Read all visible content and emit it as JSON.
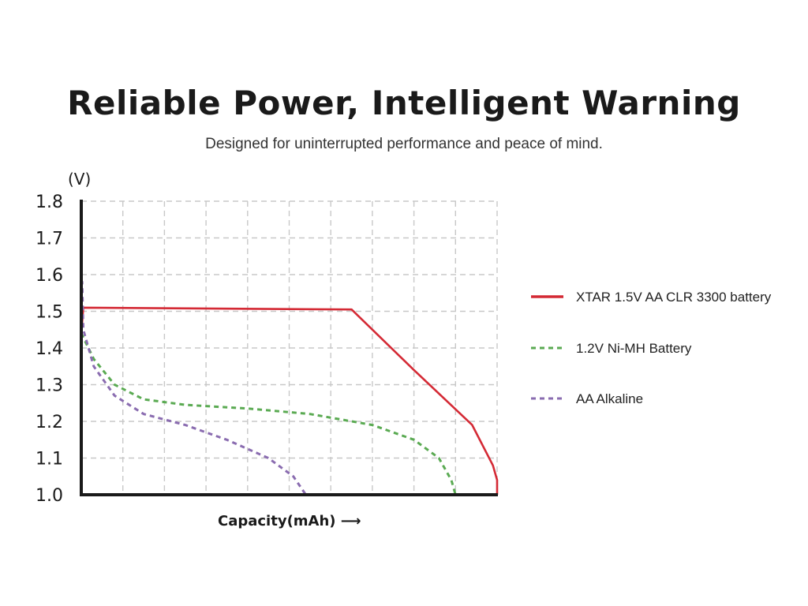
{
  "header": {
    "title": "Reliable Power, Intelligent Warning",
    "subtitle": "Designed for uninterrupted performance and peace of mind."
  },
  "chart_data": {
    "type": "line",
    "title": "Reliable Power, Intelligent Warning",
    "subtitle": "Designed for uninterrupted performance and peace of mind.",
    "xlabel": "Capacity(mAh) ⟶",
    "ylabel": "(V)",
    "ylim": [
      1.0,
      1.8
    ],
    "yticks": [
      "1.0",
      "1.1",
      "1.2",
      "1.3",
      "1.4",
      "1.5",
      "1.6",
      "1.7",
      "1.8"
    ],
    "xlim": [
      0,
      10
    ],
    "grid": true,
    "legend_position": "right",
    "series": [
      {
        "name": "XTAR 1.5V AA CLR 3300 battery",
        "color": "#d42a35",
        "style": "solid",
        "x": [
          0,
          0.05,
          6.5,
          8.0,
          9.4,
          9.9,
          10.0,
          10.0
        ],
        "y": [
          1.44,
          1.51,
          1.505,
          1.34,
          1.19,
          1.08,
          1.04,
          1.0
        ]
      },
      {
        "name": "1.2V Ni-MH Battery",
        "color": "#5aaa52",
        "style": "dashed",
        "x": [
          0,
          0.3,
          0.8,
          1.5,
          2.5,
          4.0,
          5.5,
          7.0,
          8.0,
          8.6,
          8.9,
          9.0
        ],
        "y": [
          1.44,
          1.37,
          1.3,
          1.26,
          1.245,
          1.235,
          1.22,
          1.19,
          1.15,
          1.1,
          1.04,
          1.0
        ]
      },
      {
        "name": "AA Alkaline",
        "color": "#8a6cb0",
        "style": "dashed",
        "x": [
          0,
          0.02,
          0.05,
          0.3,
          0.8,
          1.5,
          2.5,
          3.5,
          4.5,
          5.1,
          5.4
        ],
        "y": [
          1.55,
          1.58,
          1.45,
          1.35,
          1.27,
          1.22,
          1.19,
          1.15,
          1.1,
          1.05,
          1.0
        ]
      }
    ]
  }
}
